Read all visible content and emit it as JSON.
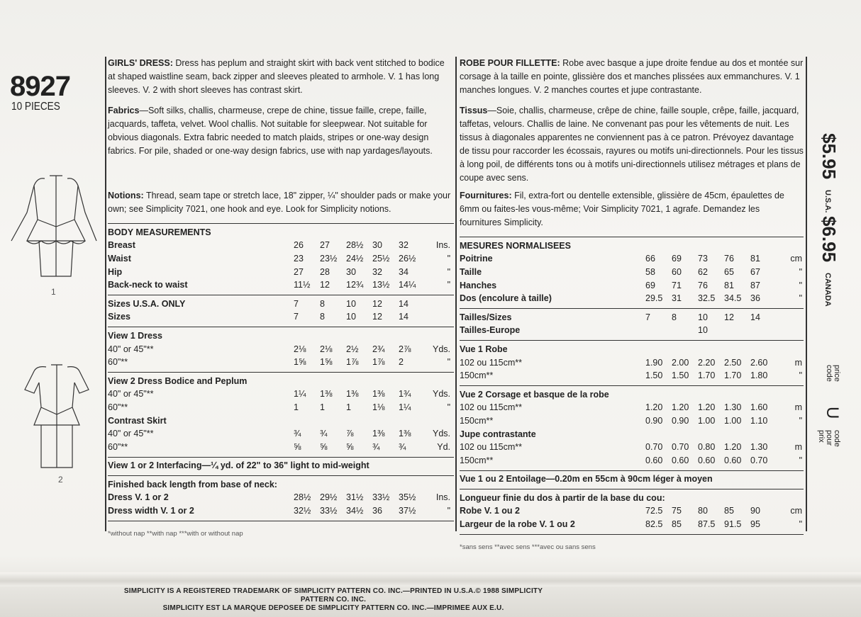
{
  "pattern": {
    "number": "8927",
    "pieces": "10 PIECES",
    "view_labels": [
      "1",
      "2"
    ]
  },
  "english": {
    "description_title": "GIRLS' DRESS:",
    "description": "Dress has peplum and straight skirt with back vent stitched to bodice at shaped waistline seam, back zipper and sleeves pleated to armhole. V. 1 has long sleeves. V. 2 with short sleeves has contrast skirt.",
    "fabrics_title": "Fabrics",
    "fabrics": "—Soft silks, challis, charmeuse, crepe de chine, tissue faille, crepe, faille, jacquards, taffeta, velvet. Wool challis. Not suitable for sleepwear. Not suitable for obvious diagonals. Extra fabric needed to match plaids, stripes or one-way design fabrics. For pile, shaded or one-way design fabrics, use with nap yardages/layouts.",
    "notions_title": "Notions:",
    "notions": "Thread, seam tape or stretch lace, 18\" zipper, ¼\" shoulder pads or make your own; see Simplicity 7021, one hook and eye. Look for Simplicity notions.",
    "blocks": [
      [
        {
          "label": "BODY MEASUREMENTS",
          "bold": true,
          "values": [],
          "unit": ""
        },
        {
          "label": "Breast",
          "bold": true,
          "values": [
            "26",
            "27",
            "28½",
            "30",
            "32"
          ],
          "unit": "Ins."
        },
        {
          "label": "Waist",
          "bold": true,
          "values": [
            "23",
            "23½",
            "24½",
            "25½",
            "26½"
          ],
          "unit": "\""
        },
        {
          "label": "Hip",
          "bold": true,
          "values": [
            "27",
            "28",
            "30",
            "32",
            "34"
          ],
          "unit": "\""
        },
        {
          "label": "Back-neck to waist",
          "bold": true,
          "values": [
            "11½",
            "12",
            "12¾",
            "13½",
            "14¼"
          ],
          "unit": "\""
        }
      ],
      [
        {
          "label": "Sizes U.S.A. ONLY",
          "bold": true,
          "values": [
            "7",
            "8",
            "10",
            "12",
            "14"
          ],
          "unit": ""
        },
        {
          "label": "Sizes",
          "bold": true,
          "values": [
            "7",
            "8",
            "10",
            "12",
            "14"
          ],
          "unit": ""
        }
      ],
      [
        {
          "label": "View 1 Dress",
          "bold": true,
          "values": [],
          "unit": ""
        },
        {
          "label": "40\" or 45\"**",
          "bold": false,
          "values": [
            "2⅛",
            "2⅛",
            "2½",
            "2¾",
            "2⅞"
          ],
          "unit": "Yds."
        },
        {
          "label": "60\"**",
          "bold": false,
          "values": [
            "1⅝",
            "1⅝",
            "1⅞",
            "1⅞",
            "2"
          ],
          "unit": "\""
        }
      ],
      [
        {
          "label": "View 2 Dress Bodice and Peplum",
          "bold": true,
          "values": [],
          "unit": ""
        },
        {
          "label": "40\" or 45\"**",
          "bold": false,
          "values": [
            "1¼",
            "1⅜",
            "1⅜",
            "1⅜",
            "1¾"
          ],
          "unit": "Yds."
        },
        {
          "label": "60\"**",
          "bold": false,
          "values": [
            "1",
            "1",
            "1",
            "1⅛",
            "1¼"
          ],
          "unit": "\""
        },
        {
          "label": "Contrast Skirt",
          "bold": true,
          "values": [],
          "unit": ""
        },
        {
          "label": "40\" or 45\"**",
          "bold": false,
          "values": [
            "¾",
            "¾",
            "⅞",
            "1⅜",
            "1⅜"
          ],
          "unit": "Yds."
        },
        {
          "label": "60\"**",
          "bold": false,
          "values": [
            "⅝",
            "⅝",
            "⅝",
            "¾",
            "¾"
          ],
          "unit": "Yd."
        }
      ],
      [
        {
          "label": "View 1 or 2 Interfacing—¼ yd. of 22\" to 36\" light to mid-weight",
          "bold": true,
          "values": [],
          "unit": ""
        }
      ],
      [
        {
          "label": "Finished back length from base of neck:",
          "bold": true,
          "values": [],
          "unit": ""
        },
        {
          "label": "Dress V. 1 or 2",
          "bold": true,
          "values": [
            "28½",
            "29½",
            "31½",
            "33½",
            "35½"
          ],
          "unit": "Ins."
        },
        {
          "label": "Dress width V. 1 or 2",
          "bold": true,
          "values": [
            "32½",
            "33½",
            "34½",
            "36",
            "37½"
          ],
          "unit": "\""
        }
      ]
    ],
    "footnote": "*without nap **with nap ***with or without nap"
  },
  "french": {
    "description_title": "ROBE POUR FILLETTE:",
    "description": "Robe avec basque a jupe droite fendue au dos et montée sur corsage à la taille en pointe, glissière dos et manches plissées aux emmanchures. V. 1 manches longues. V. 2 manches courtes et jupe contrastante.",
    "fabrics_title": "Tissus",
    "fabrics": "—Soie, challis, charmeuse, crêpe de chine, faille souple, crêpe, faille, jacquard, taffetas, velours. Challis de laine. Ne convenant pas pour les vêtements de nuit. Les tissus à diagonales apparentes ne conviennent pas à ce patron. Prévoyez davantage de tissu pour raccorder les écossais, rayures ou motifs uni-directionnels. Pour les tissus à long poil, de différents tons ou à motifs uni-directionnels utilisez métrages et plans de coupe avec sens.",
    "notions_title": "Fournitures:",
    "notions": "Fil, extra-fort ou dentelle extensible, glissière de 45cm, épaulettes de 6mm ou faites-les vous-même; Voir Simplicity 7021, 1 agrafe. Demandez les fournitures Simplicity.",
    "blocks": [
      [
        {
          "label": "MESURES NORMALISEES",
          "bold": true,
          "values": [],
          "unit": ""
        },
        {
          "label": "Poitrine",
          "bold": true,
          "values": [
            "66",
            "69",
            "73",
            "76",
            "81"
          ],
          "unit": "cm"
        },
        {
          "label": "Taille",
          "bold": true,
          "values": [
            "58",
            "60",
            "62",
            "65",
            "67"
          ],
          "unit": "\""
        },
        {
          "label": "Hanches",
          "bold": true,
          "values": [
            "69",
            "71",
            "76",
            "81",
            "87"
          ],
          "unit": "\""
        },
        {
          "label": "Dos (encolure à taille)",
          "bold": true,
          "values": [
            "29.5",
            "31",
            "32.5",
            "34.5",
            "36"
          ],
          "unit": "\""
        }
      ],
      [
        {
          "label": "Tailles/Sizes",
          "bold": true,
          "values": [
            "7",
            "8",
            "10",
            "12",
            "14"
          ],
          "unit": ""
        },
        {
          "label": "Tailles-Europe",
          "bold": true,
          "values": [
            "",
            "",
            "10",
            "",
            ""
          ],
          "unit": ""
        }
      ],
      [
        {
          "label": "Vue 1 Robe",
          "bold": true,
          "values": [],
          "unit": ""
        },
        {
          "label": "102 ou 115cm**",
          "bold": false,
          "values": [
            "1.90",
            "2.00",
            "2.20",
            "2.50",
            "2.60"
          ],
          "unit": "m"
        },
        {
          "label": "150cm**",
          "bold": false,
          "values": [
            "1.50",
            "1.50",
            "1.70",
            "1.70",
            "1.80"
          ],
          "unit": "\""
        }
      ],
      [
        {
          "label": "Vue 2 Corsage et basque de la robe",
          "bold": true,
          "values": [],
          "unit": ""
        },
        {
          "label": "102 ou 115cm**",
          "bold": false,
          "values": [
            "1.20",
            "1.20",
            "1.20",
            "1.30",
            "1.60"
          ],
          "unit": "m"
        },
        {
          "label": "150cm**",
          "bold": false,
          "values": [
            "0.90",
            "0.90",
            "1.00",
            "1.00",
            "1.10"
          ],
          "unit": "\""
        },
        {
          "label": "Jupe contrastante",
          "bold": true,
          "values": [],
          "unit": ""
        },
        {
          "label": "102 ou 115cm**",
          "bold": false,
          "values": [
            "0.70",
            "0.70",
            "0.80",
            "1.20",
            "1.30"
          ],
          "unit": "m"
        },
        {
          "label": "150cm**",
          "bold": false,
          "values": [
            "0.60",
            "0.60",
            "0.60",
            "0.60",
            "0.70"
          ],
          "unit": "\""
        }
      ],
      [
        {
          "label": "Vue 1 ou 2 Entoilage—0.20m en 55cm à 90cm léger à moyen",
          "bold": true,
          "values": [],
          "unit": ""
        }
      ],
      [
        {
          "label": "Longueur finie du dos à partir de la base du cou:",
          "bold": true,
          "values": [],
          "unit": ""
        },
        {
          "label": "Robe V. 1 ou 2",
          "bold": true,
          "values": [
            "72.5",
            "75",
            "80",
            "85",
            "90"
          ],
          "unit": "cm"
        },
        {
          "label": "Largeur de la robe V. 1 ou 2",
          "bold": true,
          "values": [
            "82.5",
            "85",
            "87.5",
            "91.5",
            "95"
          ],
          "unit": "\""
        }
      ]
    ],
    "footnote": "*sans sens **avec sens ***avec ou sans sens"
  },
  "prices": {
    "usa_price": "$5.95",
    "usa_label": "U.S.A.",
    "canada_price": "$6.95",
    "canada_label": "CANADA",
    "price_code_label": "price code",
    "price_code": "U",
    "code_pour_prix": "code pour prix"
  },
  "trademark": {
    "line1": "SIMPLICITY IS A REGISTERED TRADEMARK OF SIMPLICITY PATTERN CO. INC.—PRINTED IN U.S.A.© 1988 SIMPLICITY PATTERN CO. INC.",
    "line2": "SIMPLICITY EST LA MARQUE DEPOSEE DE SIMPLICITY PATTERN CO. INC.—IMPRIMEE AUX E.U."
  },
  "colors": {
    "paper": "#f4f3ef",
    "ink": "#222222"
  }
}
